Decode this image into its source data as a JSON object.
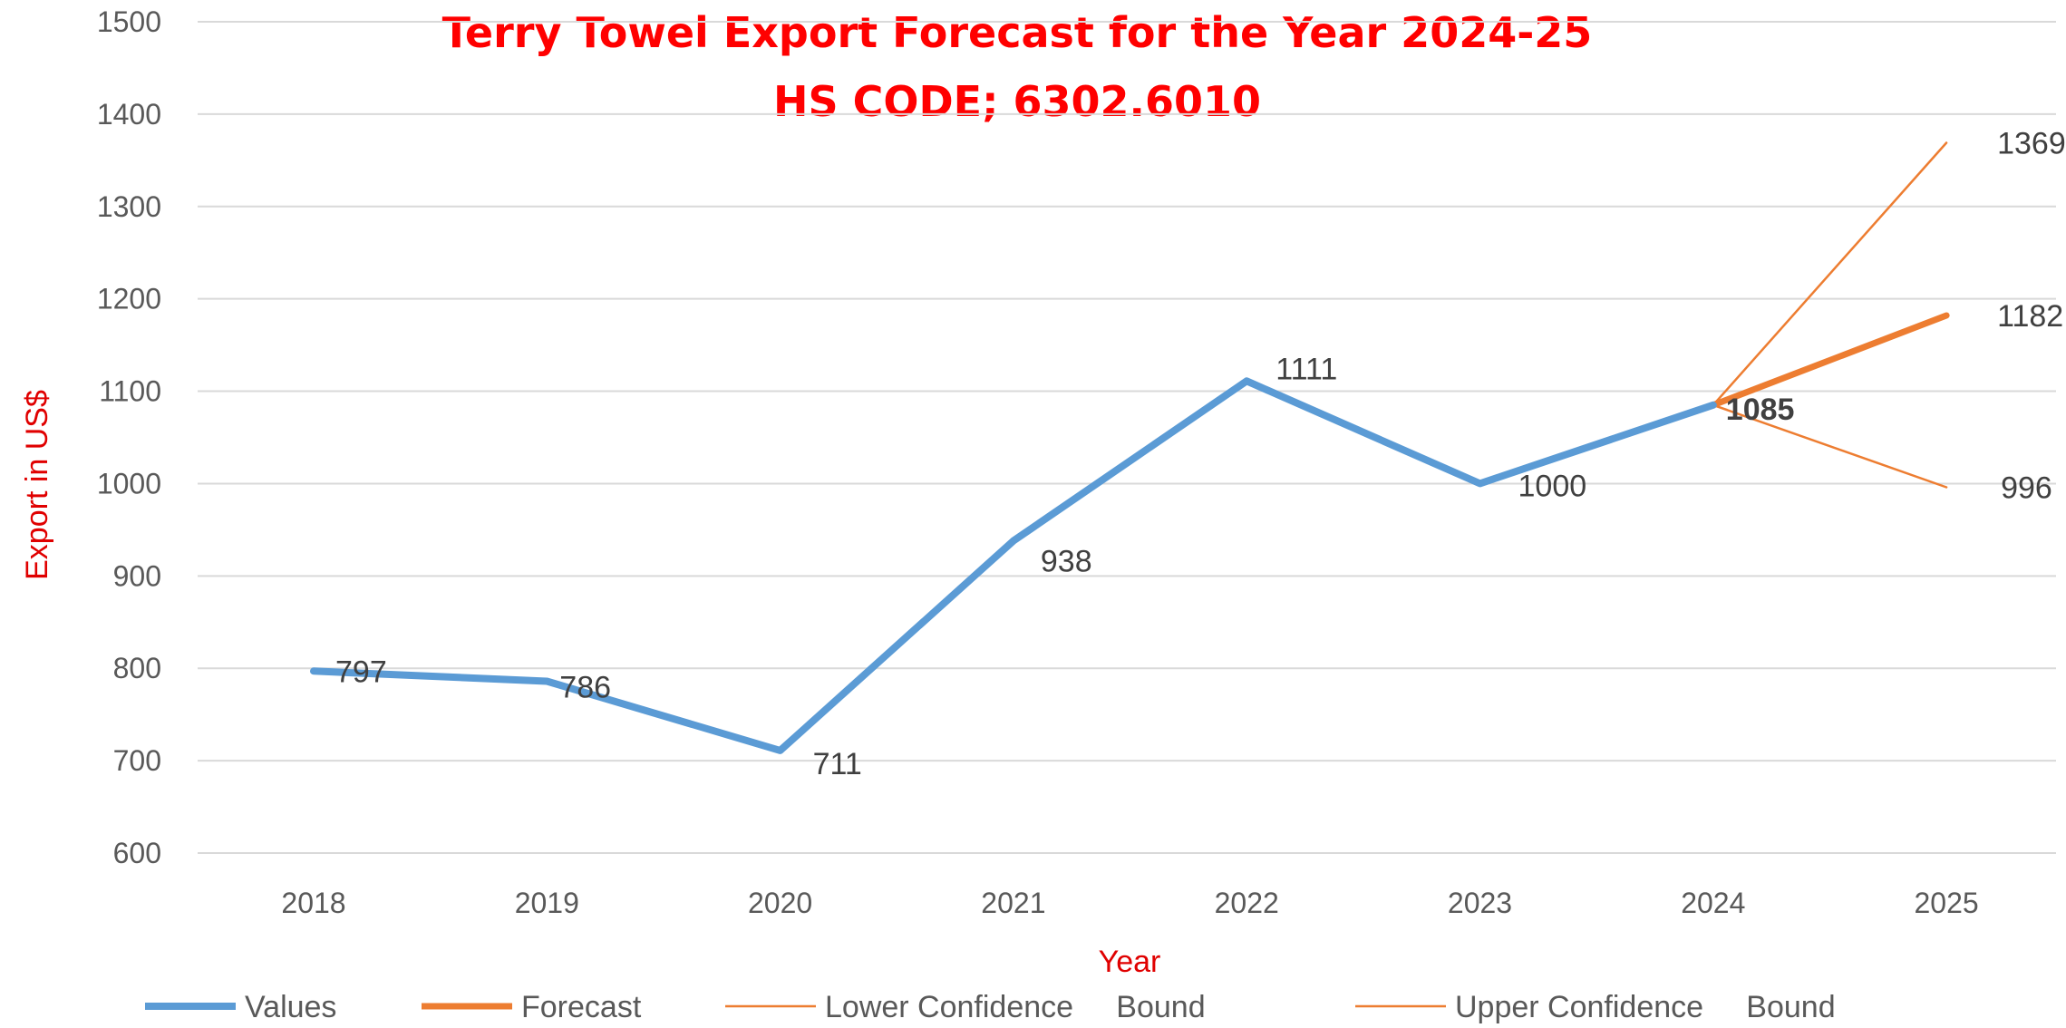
{
  "chart_data": {
    "type": "line",
    "title": "Terry Towel Export Forecast for the Year 2024-25",
    "subtitle": "HS CODE; 6302.6010",
    "xlabel": "Year",
    "ylabel": "Export in US$",
    "categories": [
      "2018",
      "2019",
      "2020",
      "2021",
      "2022",
      "2023",
      "2024",
      "2025"
    ],
    "ylim": [
      600,
      1500
    ],
    "yticks": [
      600,
      700,
      800,
      900,
      1000,
      1100,
      1200,
      1300,
      1400,
      1500
    ],
    "grid": true,
    "legend_position": "bottom",
    "series": [
      {
        "name": "Values",
        "color": "#5B9BD5",
        "points": [
          [
            2018,
            797
          ],
          [
            2019,
            786
          ],
          [
            2020,
            711
          ],
          [
            2021,
            938
          ],
          [
            2022,
            1111
          ],
          [
            2023,
            1000
          ],
          [
            2024,
            1085
          ]
        ]
      },
      {
        "name": "Forecast",
        "color": "#ED7D31",
        "points": [
          [
            2024,
            1085
          ],
          [
            2025,
            1182
          ]
        ]
      },
      {
        "name": "Lower Confidence     Bound",
        "color": "#ED7D31",
        "points": [
          [
            2024,
            1085
          ],
          [
            2025,
            996
          ]
        ]
      },
      {
        "name": "Upper Confidence     Bound",
        "color": "#ED7D31",
        "points": [
          [
            2024,
            1085
          ],
          [
            2025,
            1369
          ]
        ]
      }
    ],
    "data_labels": [
      {
        "x": 2018,
        "y": 797,
        "text": "797"
      },
      {
        "x": 2019,
        "y": 786,
        "text": "786"
      },
      {
        "x": 2020,
        "y": 711,
        "text": "711"
      },
      {
        "x": 2021,
        "y": 938,
        "text": "938"
      },
      {
        "x": 2022,
        "y": 1111,
        "text": "1111"
      },
      {
        "x": 2023,
        "y": 1000,
        "text": "1000"
      },
      {
        "x": 2024,
        "y": 1085,
        "text": "1085"
      },
      {
        "x": 2025,
        "y": 1369,
        "text": "1369"
      },
      {
        "x": 2025,
        "y": 1182,
        "text": "1182"
      },
      {
        "x": 2025,
        "y": 996,
        "text": "996"
      }
    ],
    "colors": {
      "title": "#FF0000",
      "axis_label": "#E00000",
      "grid": "#D9D9D9"
    }
  }
}
